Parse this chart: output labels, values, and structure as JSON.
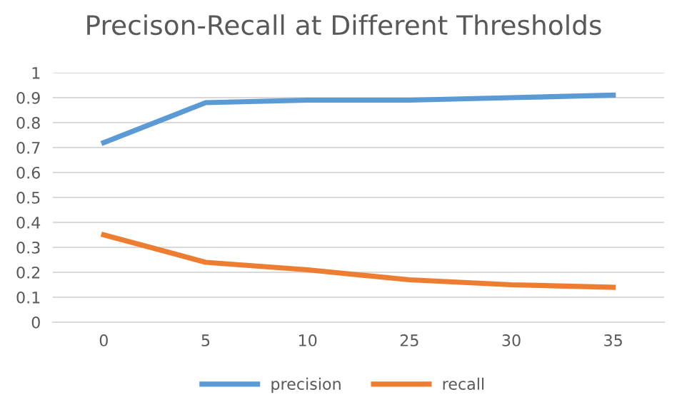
{
  "chart_data": {
    "type": "line",
    "title": "Precison-Recall at Different Thresholds",
    "categories": [
      "0",
      "5",
      "10",
      "25",
      "30",
      "35"
    ],
    "series": [
      {
        "name": "precision",
        "color": "#5b9bd5",
        "values": [
          0.72,
          0.88,
          0.89,
          0.89,
          0.9,
          0.91
        ]
      },
      {
        "name": "recall",
        "color": "#ed7d31",
        "values": [
          0.35,
          0.24,
          0.21,
          0.17,
          0.15,
          0.14
        ]
      }
    ],
    "ylim": [
      0,
      1
    ],
    "yticks": [
      0,
      0.1,
      0.2,
      0.3,
      0.4,
      0.5,
      0.6,
      0.7,
      0.8,
      0.9,
      1
    ],
    "grid": "y",
    "legend": "bottom",
    "marker": "none",
    "line_style": "solid"
  }
}
